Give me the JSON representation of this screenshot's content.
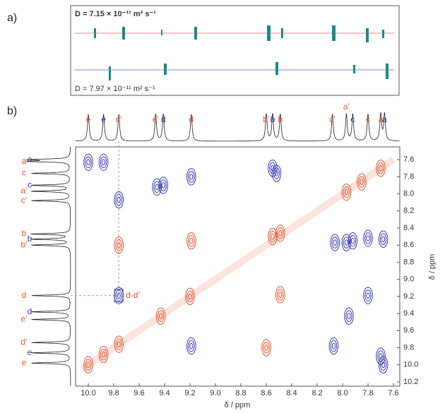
{
  "panel_a": {
    "label": "a)",
    "top_text": "D = 7.15 × 10⁻¹¹ m² s⁻¹",
    "bottom_text": "D = 7.97 × 10⁻¹¹ m² s⁻¹"
  },
  "panel_b": {
    "label": "b)",
    "xlabel": "δ / ppm",
    "ylabel": "δ / ppm",
    "xlim": [
      10.1,
      7.55
    ],
    "ylim": [
      7.45,
      10.25
    ],
    "xticks": [
      {
        "value": 10,
        "label": "10.0"
      },
      9.8,
      9.6,
      9.4,
      9.2,
      {
        "value": 9,
        "label": "9.0"
      },
      8.8,
      8.6,
      8.4,
      8.2,
      {
        "value": 8,
        "label": "8.0"
      },
      7.8,
      7.6
    ],
    "yticks": [
      7.6,
      7.8,
      {
        "value": 8,
        "label": "8.0"
      },
      8.2,
      8.4,
      8.6,
      8.8,
      {
        "value": 9,
        "label": "9.0"
      },
      9.2,
      9.4,
      9.6,
      9.8,
      {
        "value": 10,
        "label": "10.0"
      },
      10.2
    ],
    "red": "#e8542a",
    "blue": "#3a3ab4",
    "top_labels": [
      {
        "text": "e",
        "ppm": 10.0,
        "color": "red"
      },
      {
        "text": "e",
        "ppm": 9.88,
        "color": "blue"
      },
      {
        "text": "d’",
        "ppm": 9.76,
        "color": "red"
      },
      {
        "text": "e’",
        "ppm": 9.47,
        "color": "red"
      },
      {
        "text": "d",
        "ppm": 9.41,
        "color": "blue"
      },
      {
        "text": "d",
        "ppm": 9.19,
        "color": "red"
      },
      {
        "text": "b’",
        "ppm": 8.6,
        "color": "red"
      },
      {
        "text": "b",
        "ppm": 8.55,
        "color": "blue"
      },
      {
        "text": "b",
        "ppm": 8.49,
        "color": "red"
      },
      {
        "text": "c’",
        "ppm": 8.08,
        "color": "red"
      },
      {
        "text": "a’",
        "ppm": 7.97,
        "color": "red"
      },
      {
        "text": "c",
        "ppm": 7.92,
        "color": "blue"
      },
      {
        "text": "c",
        "ppm": 7.8,
        "color": "red"
      },
      {
        "text": "a",
        "ppm": 7.7,
        "color": "red"
      },
      {
        "text": "a",
        "ppm": 7.67,
        "color": "blue"
      }
    ],
    "side_labels": [
      {
        "text": "a",
        "ppm": 7.62,
        "color": "red"
      },
      {
        "text": "a",
        "ppm": 7.6,
        "color": "blue"
      },
      {
        "text": "c",
        "ppm": 7.76,
        "color": "red"
      },
      {
        "text": "c",
        "ppm": 7.9,
        "color": "blue"
      },
      {
        "text": "a’",
        "ppm": 7.97,
        "color": "red"
      },
      {
        "text": "c’",
        "ppm": 8.08,
        "color": "red"
      },
      {
        "text": "b",
        "ppm": 8.47,
        "color": "red"
      },
      {
        "text": "b",
        "ppm": 8.53,
        "color": "blue"
      },
      {
        "text": "b’",
        "ppm": 8.6,
        "color": "red"
      },
      {
        "text": "d",
        "ppm": 9.19,
        "color": "red"
      },
      {
        "text": "d",
        "ppm": 9.38,
        "color": "blue"
      },
      {
        "text": "e’",
        "ppm": 9.47,
        "color": "red"
      },
      {
        "text": "d’",
        "ppm": 9.74,
        "color": "red"
      },
      {
        "text": "e",
        "ppm": 9.86,
        "color": "blue"
      },
      {
        "text": "e",
        "ppm": 9.98,
        "color": "red"
      }
    ],
    "crosspeak_label": "d-d’",
    "red_peaks": [
      [
        10.0,
        10.0
      ],
      [
        9.88,
        9.88
      ],
      [
        9.76,
        9.76
      ],
      [
        9.43,
        9.43
      ],
      [
        9.2,
        9.2
      ],
      [
        8.55,
        8.5
      ],
      [
        8.49,
        8.46
      ],
      [
        7.97,
        7.98
      ],
      [
        7.85,
        7.86
      ],
      [
        7.7,
        7.7
      ],
      [
        9.76,
        8.6
      ],
      [
        9.19,
        8.55
      ],
      [
        8.49,
        9.18
      ],
      [
        8.6,
        9.8
      ]
    ],
    "blue_peaks": [
      [
        10.0,
        7.63
      ],
      [
        9.88,
        7.63
      ],
      [
        9.76,
        8.07
      ],
      [
        9.46,
        7.92
      ],
      [
        9.41,
        7.9
      ],
      [
        9.19,
        7.8
      ],
      [
        8.55,
        7.7
      ],
      [
        8.52,
        7.76
      ],
      [
        8.06,
        8.57
      ],
      [
        7.97,
        8.57
      ],
      [
        7.92,
        8.55
      ],
      [
        7.8,
        8.52
      ],
      [
        7.68,
        8.53
      ],
      [
        9.76,
        9.19
      ],
      [
        7.8,
        9.19
      ],
      [
        7.95,
        9.43
      ],
      [
        9.19,
        9.78
      ],
      [
        8.07,
        9.78
      ],
      [
        7.7,
        9.9
      ],
      [
        7.68,
        10.0
      ]
    ]
  }
}
